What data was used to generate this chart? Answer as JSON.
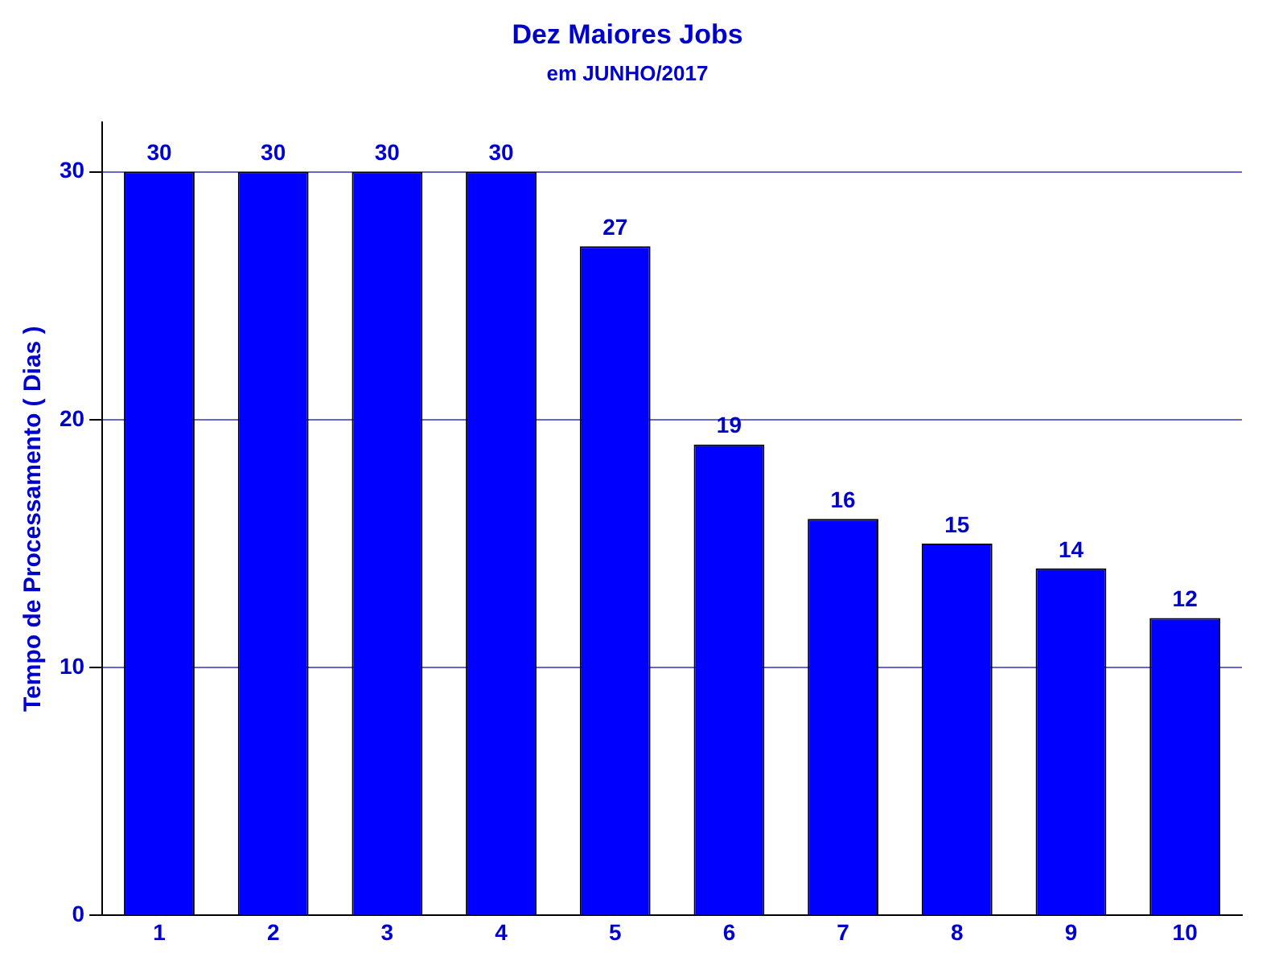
{
  "chart_data": {
    "type": "bar",
    "title": "Dez Maiores Jobs",
    "subtitle": "em JUNHO/2017",
    "ylabel": "Tempo de Processamento ( Dias )",
    "categories": [
      "1",
      "2",
      "3",
      "4",
      "5",
      "6",
      "7",
      "8",
      "9",
      "10"
    ],
    "values": [
      30,
      30,
      30,
      30,
      27,
      19,
      16,
      15,
      14,
      12
    ],
    "color": "#0000ff",
    "ylim": [
      0,
      32
    ],
    "yticks": [
      0,
      10,
      20,
      30
    ],
    "grid": "y",
    "data_labels": true,
    "legend": false
  }
}
